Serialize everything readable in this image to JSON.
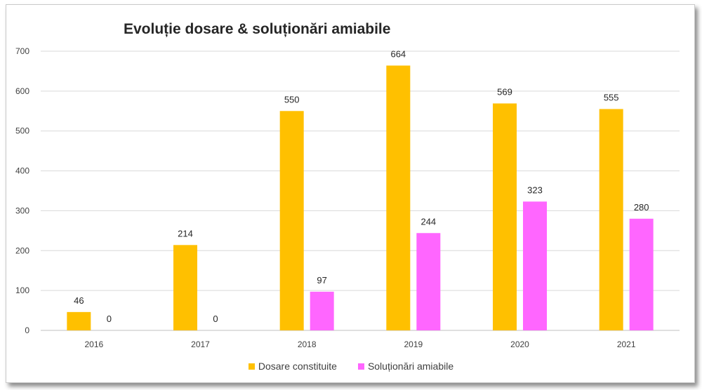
{
  "chart_data": {
    "type": "bar",
    "title": "Evoluție dosare & soluționări amiabile",
    "xlabel": "",
    "ylabel": "",
    "categories": [
      "2016",
      "2017",
      "2018",
      "2019",
      "2020",
      "2021"
    ],
    "series": [
      {
        "name": "Dosare constituite",
        "values": [
          46,
          214,
          550,
          664,
          569,
          555
        ],
        "color": "#FFC000"
      },
      {
        "name": "Soluționări amiabile",
        "values": [
          0,
          0,
          97,
          244,
          323,
          280
        ],
        "color": "#FF66FF"
      }
    ],
    "ylim": [
      0,
      700
    ],
    "yticks": [
      0,
      100,
      200,
      300,
      400,
      500,
      600,
      700
    ],
    "grid": true,
    "data_labels": true,
    "legend_position": "bottom"
  }
}
